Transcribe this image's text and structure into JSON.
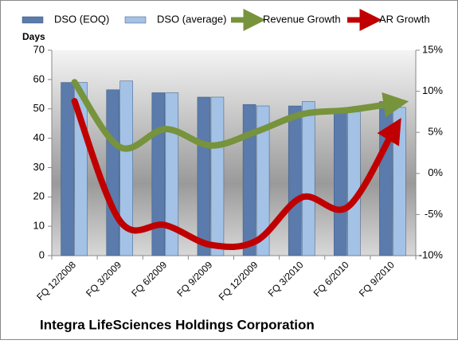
{
  "chart_data": {
    "type": "bar",
    "title": "Integra LifeSciences Holdings Corporation",
    "ylabel": "Days",
    "categories": [
      "FQ 12/2008",
      "FQ 3/2009",
      "FQ 6/2009",
      "FQ 9/2009",
      "FQ 12/2009",
      "FQ 3/2010",
      "FQ 6/2010",
      "FQ 9/2010"
    ],
    "series": [
      {
        "name": "DSO (EOQ)",
        "color": "#5a7bab",
        "values": [
          59,
          56.5,
          55.5,
          54,
          51.5,
          51,
          49,
          52.5
        ]
      },
      {
        "name": "DSO (average)",
        "color": "#a3c2e6",
        "values": [
          59,
          59.5,
          55.5,
          54,
          51,
          52.5,
          49,
          50.5
        ]
      },
      {
        "name": "Revenue Growth",
        "color": "#77933c",
        "type": "line",
        "axis": "y2",
        "values": [
          11.1,
          3.2,
          5.4,
          3.4,
          5.1,
          7.2,
          7.7,
          8.5
        ]
      },
      {
        "name": "AR Growth",
        "color": "#c00000",
        "type": "line",
        "axis": "y2",
        "values": [
          8.8,
          -5.8,
          -6.3,
          -8.7,
          -8.2,
          -2.9,
          -4.1,
          5.1
        ]
      }
    ],
    "ylim": [
      0,
      70
    ],
    "yticks": [
      0,
      10,
      20,
      30,
      40,
      50,
      60,
      70
    ],
    "y2lim": [
      -10,
      15
    ],
    "y2ticks": [
      {
        "value": -10,
        "label": "-10%"
      },
      {
        "value": -5,
        "label": "-5%"
      },
      {
        "value": 0,
        "label": "0%"
      },
      {
        "value": 5,
        "label": "5%"
      },
      {
        "value": 10,
        "label": "10%"
      },
      {
        "value": 15,
        "label": "15%"
      }
    ],
    "legend": "top"
  }
}
